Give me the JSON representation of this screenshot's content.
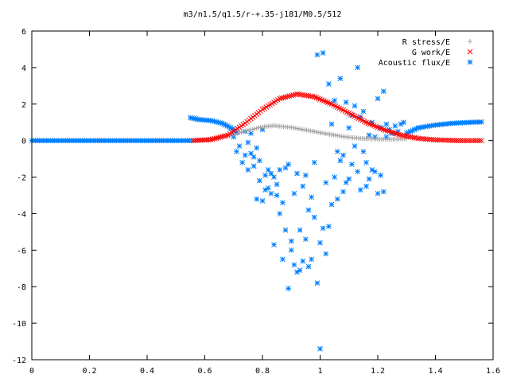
{
  "chart_data": {
    "type": "scatter",
    "title": "m3/n1.5/q1.5/r-+.35-j181/M0.5/512",
    "xlabel": "",
    "ylabel": "",
    "xlim": [
      0,
      1.6
    ],
    "ylim": [
      -12,
      6
    ],
    "xticks": [
      "0",
      "0.2",
      "0.4",
      "0.6",
      "0.8",
      "1",
      "1.2",
      "1.4",
      "1.6"
    ],
    "yticks": [
      "6",
      "4",
      "2",
      "0",
      "-2",
      "-4",
      "-6",
      "-8",
      "-10",
      "-12"
    ],
    "legend_position": "top-right",
    "grid": false,
    "series": [
      {
        "name": "R stress/E",
        "marker": "plus",
        "color": "#a0a0a0",
        "segments": [
          {
            "from": 0.56,
            "to": 0.84,
            "points": [
              [
                0.56,
                0.0
              ],
              [
                0.62,
                0.08
              ],
              [
                0.68,
                0.25
              ],
              [
                0.74,
                0.52
              ],
              [
                0.8,
                0.75
              ],
              [
                0.84,
                0.82
              ]
            ]
          },
          {
            "from": 0.84,
            "to": 1.3,
            "points": [
              [
                0.84,
                0.82
              ],
              [
                0.9,
                0.72
              ],
              [
                0.96,
                0.55
              ],
              [
                1.02,
                0.38
              ],
              [
                1.08,
                0.22
              ],
              [
                1.14,
                0.12
              ],
              [
                1.2,
                0.08
              ],
              [
                1.26,
                0.07
              ],
              [
                1.3,
                0.1
              ]
            ]
          }
        ]
      },
      {
        "name": "G work/E",
        "marker": "cross",
        "color": "#ff0000",
        "segments": [
          {
            "from": 0.56,
            "to": 1.56,
            "points": [
              [
                0.56,
                0.0
              ],
              [
                0.62,
                0.05
              ],
              [
                0.68,
                0.3
              ],
              [
                0.74,
                0.95
              ],
              [
                0.8,
                1.7
              ],
              [
                0.86,
                2.3
              ],
              [
                0.92,
                2.55
              ],
              [
                0.98,
                2.4
              ],
              [
                1.04,
                2.0
              ],
              [
                1.1,
                1.5
              ],
              [
                1.16,
                1.0
              ],
              [
                1.22,
                0.6
              ],
              [
                1.28,
                0.3
              ],
              [
                1.34,
                0.12
              ],
              [
                1.4,
                0.04
              ],
              [
                1.48,
                0.0
              ],
              [
                1.56,
                0.0
              ]
            ]
          }
        ]
      },
      {
        "name": "Acoustic flux/E",
        "marker": "star",
        "color": "#0080ff",
        "segments": [
          {
            "from": 0.0,
            "to": 0.56,
            "points": [
              [
                0.0,
                0.0
              ],
              [
                0.56,
                0.0
              ]
            ]
          },
          {
            "from": 0.55,
            "to": 0.71,
            "points": [
              [
                0.55,
                1.25
              ],
              [
                0.58,
                1.15
              ],
              [
                0.62,
                1.1
              ],
              [
                0.66,
                0.95
              ],
              [
                0.69,
                0.7
              ],
              [
                0.71,
                0.45
              ]
            ]
          },
          {
            "from": 1.3,
            "to": 1.56,
            "points": [
              [
                1.3,
                0.4
              ],
              [
                1.34,
                0.7
              ],
              [
                1.4,
                0.85
              ],
              [
                1.46,
                0.95
              ],
              [
                1.52,
                1.0
              ],
              [
                1.56,
                1.02
              ]
            ]
          }
        ],
        "scatter": [
          [
            0.7,
            0.2
          ],
          [
            0.71,
            -0.6
          ],
          [
            0.72,
            -0.3
          ],
          [
            0.73,
            -1.2
          ],
          [
            0.74,
            0.5
          ],
          [
            0.74,
            -0.8
          ],
          [
            0.75,
            -1.6
          ],
          [
            0.75,
            -0.1
          ],
          [
            0.76,
            -0.7
          ],
          [
            0.76,
            0.4
          ],
          [
            0.77,
            -1.4
          ],
          [
            0.77,
            -0.9
          ],
          [
            0.78,
            -3.2
          ],
          [
            0.78,
            -0.4
          ],
          [
            0.79,
            -2.2
          ],
          [
            0.79,
            -1.1
          ],
          [
            0.8,
            -3.3
          ],
          [
            0.8,
            0.6
          ],
          [
            0.81,
            -1.9
          ],
          [
            0.81,
            -2.7
          ],
          [
            0.82,
            -1.6
          ],
          [
            0.82,
            -2.6
          ],
          [
            0.83,
            -2.9
          ],
          [
            0.83,
            -1.8
          ],
          [
            0.84,
            -5.7
          ],
          [
            0.84,
            -2.0
          ],
          [
            0.85,
            -3.0
          ],
          [
            0.85,
            -2.4
          ],
          [
            0.86,
            -1.6
          ],
          [
            0.86,
            -4.0
          ],
          [
            0.87,
            -6.5
          ],
          [
            0.87,
            -3.4
          ],
          [
            0.88,
            -4.9
          ],
          [
            0.88,
            -1.5
          ],
          [
            0.89,
            -8.1
          ],
          [
            0.89,
            -1.3
          ],
          [
            0.9,
            -6.0
          ],
          [
            0.9,
            -5.5
          ],
          [
            0.91,
            -6.8
          ],
          [
            0.91,
            -2.9
          ],
          [
            0.92,
            -7.2
          ],
          [
            0.92,
            -1.8
          ],
          [
            0.93,
            -7.1
          ],
          [
            0.93,
            -4.9
          ],
          [
            0.94,
            -6.6
          ],
          [
            0.94,
            -2.5
          ],
          [
            0.95,
            -5.4
          ],
          [
            0.95,
            -1.9
          ],
          [
            0.96,
            -6.9
          ],
          [
            0.96,
            -3.8
          ],
          [
            0.97,
            -6.5
          ],
          [
            0.97,
            -3.1
          ],
          [
            0.98,
            -4.2
          ],
          [
            0.98,
            -1.2
          ],
          [
            0.99,
            -7.8
          ],
          [
            0.99,
            4.7
          ],
          [
            1.0,
            -11.4
          ],
          [
            1.0,
            -5.6
          ],
          [
            1.01,
            4.8
          ],
          [
            1.01,
            -4.8
          ],
          [
            1.02,
            -6.2
          ],
          [
            1.02,
            -2.3
          ],
          [
            1.03,
            -4.7
          ],
          [
            1.03,
            3.1
          ],
          [
            1.04,
            -3.5
          ],
          [
            1.04,
            0.9
          ],
          [
            1.05,
            -2.0
          ],
          [
            1.05,
            2.2
          ],
          [
            1.06,
            -3.2
          ],
          [
            1.06,
            -0.6
          ],
          [
            1.07,
            -1.1
          ],
          [
            1.07,
            3.4
          ],
          [
            1.08,
            -0.8
          ],
          [
            1.08,
            -2.8
          ],
          [
            1.09,
            -2.3
          ],
          [
            1.09,
            2.1
          ],
          [
            1.1,
            -2.1
          ],
          [
            1.1,
            0.7
          ],
          [
            1.11,
            -1.3
          ],
          [
            1.11,
            1.4
          ],
          [
            1.12,
            -0.3
          ],
          [
            1.12,
            1.9
          ],
          [
            1.13,
            -1.7
          ],
          [
            1.13,
            4.0
          ],
          [
            1.14,
            -2.7
          ],
          [
            1.14,
            1.3
          ],
          [
            1.15,
            -0.6
          ],
          [
            1.15,
            1.6
          ],
          [
            1.16,
            -1.2
          ],
          [
            1.16,
            -2.5
          ],
          [
            1.17,
            0.3
          ],
          [
            1.17,
            -2.1
          ],
          [
            1.18,
            -1.6
          ],
          [
            1.18,
            1.0
          ],
          [
            1.19,
            0.2
          ],
          [
            1.19,
            -1.7
          ],
          [
            1.2,
            -2.9
          ],
          [
            1.2,
            2.3
          ],
          [
            1.21,
            -1.9
          ],
          [
            1.21,
            0.7
          ],
          [
            1.22,
            2.7
          ],
          [
            1.22,
            -2.8
          ],
          [
            1.23,
            0.9
          ],
          [
            1.23,
            0.2
          ],
          [
            1.24,
            0.6
          ],
          [
            1.25,
            0.4
          ],
          [
            1.26,
            0.8
          ],
          [
            1.27,
            0.5
          ],
          [
            1.28,
            0.9
          ],
          [
            1.29,
            1.0
          ]
        ]
      }
    ]
  }
}
